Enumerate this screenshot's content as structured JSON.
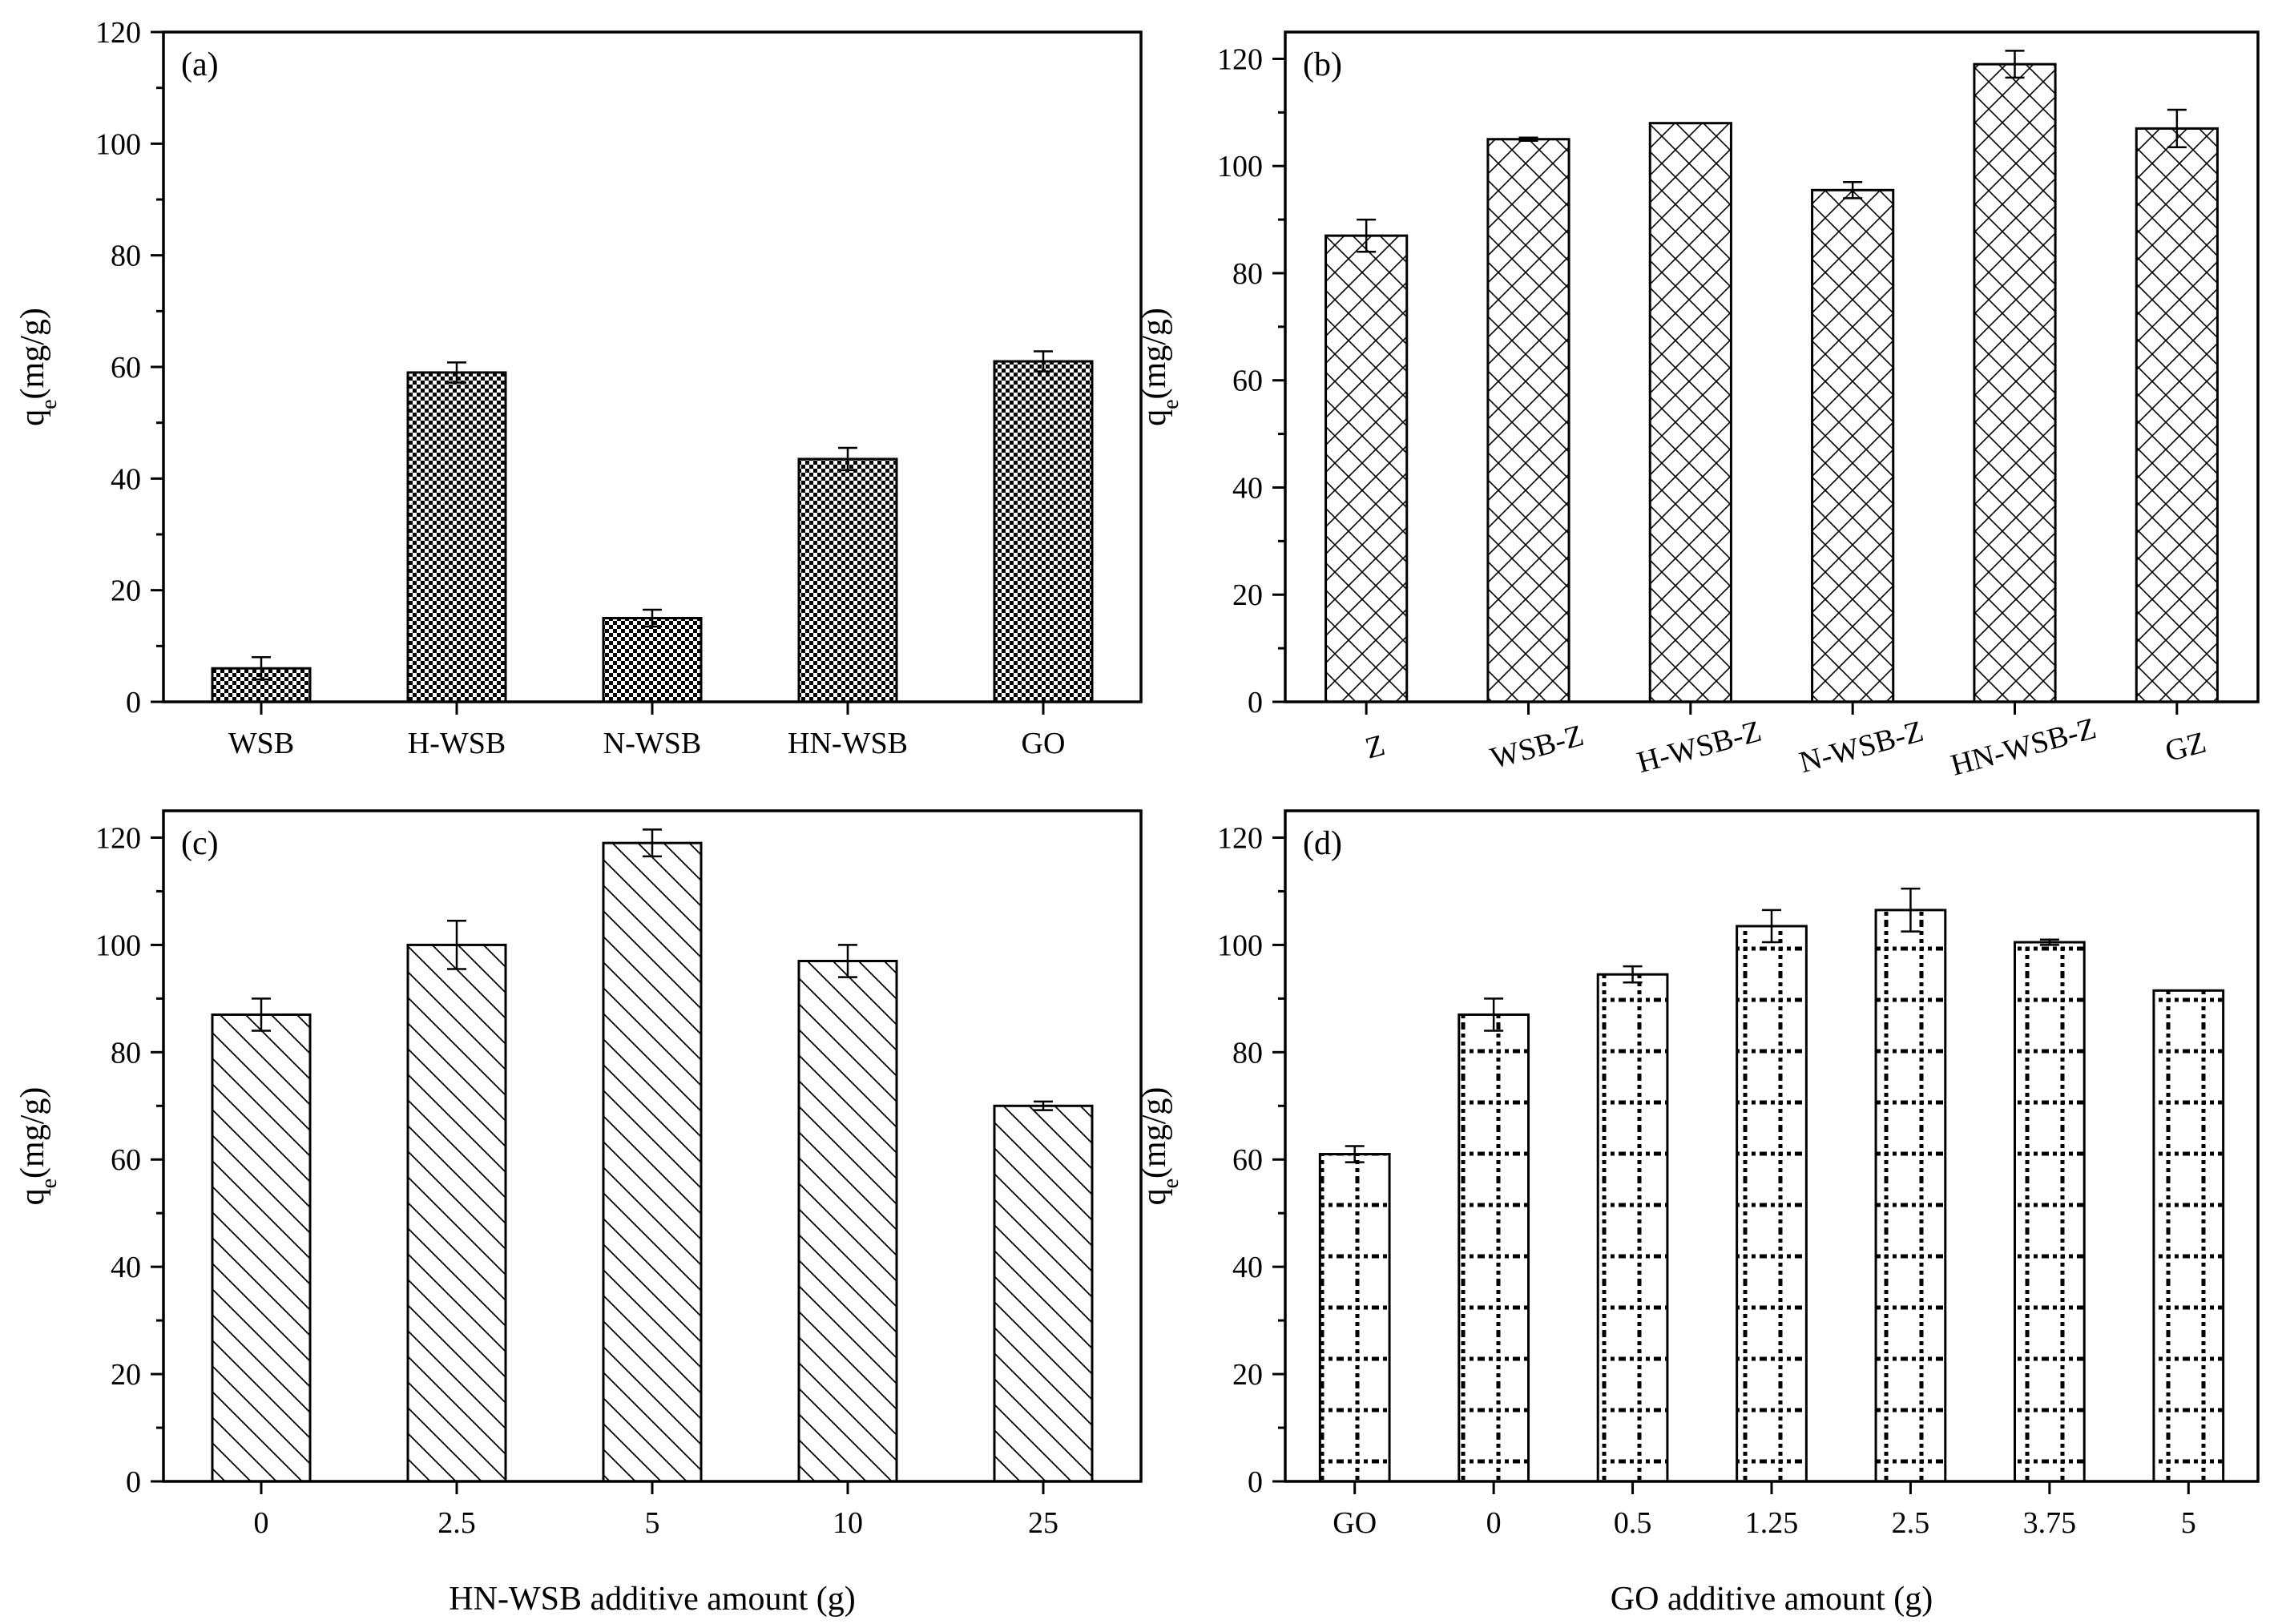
{
  "chart_data": [
    {
      "id": "a",
      "type": "bar",
      "panel_label": "(a)",
      "title": "",
      "categories": [
        "WSB",
        "H-WSB",
        "N-WSB",
        "HN-WSB",
        "GO"
      ],
      "values": [
        6,
        59,
        15,
        43.5,
        61
      ],
      "errors": [
        2,
        1.8,
        1.5,
        2,
        1.8
      ],
      "xlabel": "",
      "ylabel": "qe(mg/g)",
      "ylim": [
        0,
        120
      ],
      "yticks": [
        "0",
        "20",
        "40",
        "60",
        "80",
        "100",
        "120"
      ],
      "xtick_rotation": 0,
      "pattern": "checker"
    },
    {
      "id": "b",
      "type": "bar",
      "panel_label": "(b)",
      "title": "",
      "categories": [
        "Z",
        "WSB-Z",
        "H-WSB-Z",
        "N-WSB-Z",
        "HN-WSB-Z",
        "GZ"
      ],
      "values": [
        87,
        105,
        108,
        95.5,
        119,
        107
      ],
      "errors": [
        3,
        0.3,
        0,
        1.5,
        2.5,
        3.5
      ],
      "xlabel": "",
      "ylabel": "qe(mg/g)",
      "ylim": [
        0,
        125
      ],
      "yticks": [
        "0",
        "20",
        "40",
        "60",
        "80",
        "100",
        "120"
      ],
      "xtick_rotation": -15,
      "pattern": "crosshatch"
    },
    {
      "id": "c",
      "type": "bar",
      "panel_label": "(c)",
      "title": "",
      "categories": [
        "0",
        "2.5",
        "5",
        "10",
        "25"
      ],
      "values": [
        87,
        100,
        119,
        97,
        70
      ],
      "errors": [
        3,
        4.5,
        2.5,
        3,
        0.8
      ],
      "xlabel": "HN-WSB additive amount (g)",
      "ylabel": "qe(mg/g)",
      "ylim": [
        0,
        125
      ],
      "yticks": [
        "0",
        "20",
        "40",
        "60",
        "80",
        "100",
        "120"
      ],
      "xtick_rotation": 0,
      "pattern": "diagonal"
    },
    {
      "id": "d",
      "type": "bar",
      "panel_label": "(d)",
      "title": "",
      "categories": [
        "GO",
        "0",
        "0.5",
        "1.25",
        "2.5",
        "3.75",
        "5"
      ],
      "values": [
        61,
        87,
        94.5,
        103.5,
        106.5,
        100.5,
        91.5
      ],
      "errors": [
        1.5,
        3,
        1.5,
        3,
        4,
        0.5,
        0
      ],
      "xlabel": "GO additive amount (g)",
      "ylabel": "qe(mg/g)",
      "ylim": [
        0,
        125
      ],
      "yticks": [
        "0",
        "20",
        "40",
        "60",
        "80",
        "100",
        "120"
      ],
      "xtick_rotation": 0,
      "pattern": "dotted-grid"
    }
  ],
  "colors": {
    "axis": "#000000",
    "bar_fill": "#ffffff",
    "pattern": "#000000"
  }
}
